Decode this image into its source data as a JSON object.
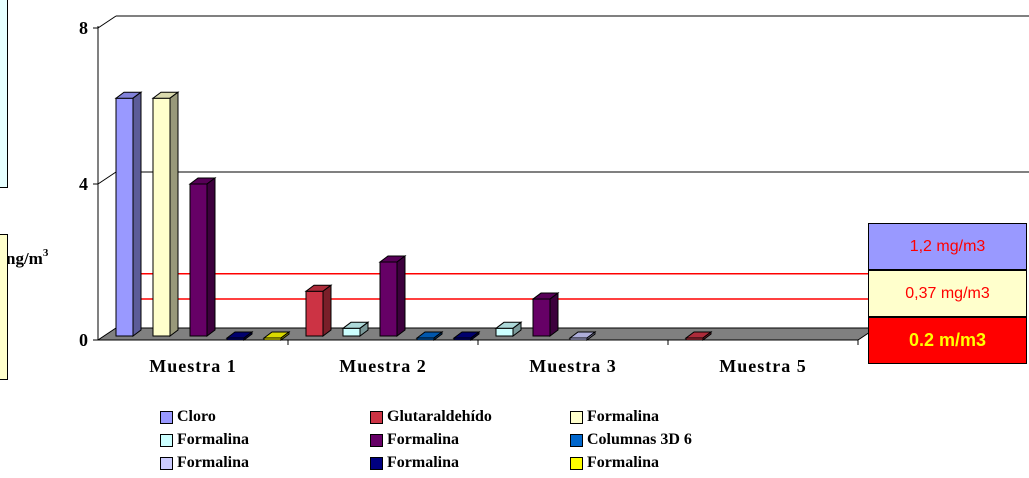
{
  "chart_data": {
    "type": "bar",
    "categories": [
      "Muestra 1",
      "Muestra 2",
      "Muestra 3",
      "Muestra 5"
    ],
    "series": [
      {
        "name": "Cloro",
        "color": "#9999ff",
        "values": [
          6.2,
          0,
          0,
          0
        ]
      },
      {
        "name": "Glutaraldehído",
        "color": "#cc3344",
        "values": [
          0,
          1.25,
          0,
          0
        ]
      },
      {
        "name": "Formalina",
        "color": "#ffffcc",
        "values": [
          6.2,
          0,
          0,
          0
        ]
      },
      {
        "name": "Formalina",
        "color": "#ccffff",
        "values": [
          0,
          0.3,
          0.3,
          0
        ]
      },
      {
        "name": "Formalina",
        "color": "#660066",
        "values": [
          4.0,
          2.0,
          1.05,
          0
        ]
      },
      {
        "name": "Columnas 3D 6",
        "color": "#0066cc",
        "values": [
          0,
          0,
          0,
          0
        ]
      },
      {
        "name": "Formalina",
        "color": "#ccccff",
        "values": [
          0,
          0,
          0,
          0
        ]
      },
      {
        "name": "Formalina",
        "color": "#000080",
        "values": [
          0,
          0,
          0,
          0
        ]
      },
      {
        "name": "Formalina",
        "color": "#ffff00",
        "values": [
          0,
          0,
          0,
          0
        ]
      }
    ],
    "ylabel": "ng/m",
    "ylabel_superscript": "3",
    "yticks": [
      "0",
      "4",
      "8"
    ],
    "ylim": [
      0,
      8
    ],
    "grid": true,
    "legend_position": "bottom",
    "reference_lines": [
      {
        "value": 1.7,
        "color": "#ff0000"
      },
      {
        "value": 1.05,
        "color": "#ff0000"
      }
    ]
  },
  "limits": [
    {
      "label": "1,2 mg/m3",
      "bg": "#9999ff",
      "fg": "#ff0000"
    },
    {
      "label": "0,37 mg/m3",
      "bg": "#ffffcc",
      "fg": "#ff0000"
    },
    {
      "label": "0.2 m/m3",
      "bg": "#ff0000",
      "fg": "#ffff00"
    }
  ]
}
